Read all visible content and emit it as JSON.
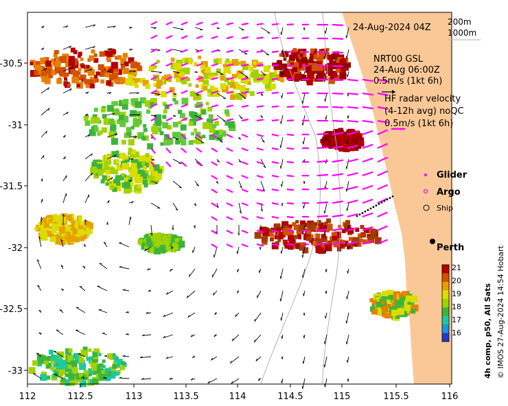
{
  "map": {
    "timestamp": "24-Aug-2024 04Z",
    "contours": [
      "200m",
      "1000m"
    ],
    "model": {
      "name": "NRT00 GSL",
      "time": "24-Aug 06:00Z",
      "scale": "0.5m/s (1kt 6h)"
    },
    "radar": {
      "name": "HF radar velocity",
      "detail": "(4-12h avg) noQC",
      "scale": "0.5m/s (1kt 6h)"
    },
    "legend": {
      "glider": "Glider",
      "argo": "Argo",
      "ship": "Ship"
    },
    "place": "Perth",
    "x_ticks": [
      "112",
      "112.5",
      "113",
      "113.5",
      "114",
      "114.5",
      "115",
      "115.5",
      "116"
    ],
    "y_ticks": [
      "-30.5",
      "-31",
      "-31.5",
      "-32",
      "-32.5",
      "-33"
    ],
    "colorbar": {
      "ticks": [
        "21",
        "20",
        "19",
        "18",
        "17",
        "16"
      ],
      "label": "4h comp, p50, All Sats",
      "colors": [
        "#b40000",
        "#d25000",
        "#e6a000",
        "#dcdc00",
        "#a0d200",
        "#3cb43c",
        "#1ec8a0",
        "#1e96dc",
        "#1e3cc8"
      ]
    },
    "credit": "© IMOS 27-Aug-2024 14:54 Hobart",
    "colors": {
      "land": "#fac896",
      "vectors_radar": "#ff00ff",
      "vectors_model": "#000000"
    }
  }
}
